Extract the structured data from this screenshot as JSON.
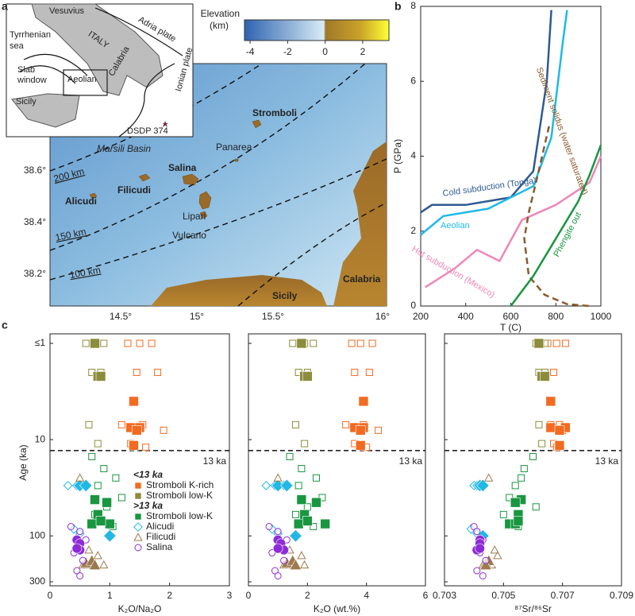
{
  "panels": [
    "a",
    "b",
    "c"
  ],
  "map": {
    "inset_labels": [
      "Vesuvius",
      "Adria plate",
      "Tyrrhenian",
      "sea",
      "ITALY",
      "Slab",
      "window",
      "Aeolian",
      "Calabria",
      "Sicily",
      "Ionian plate",
      "DSDP 374"
    ],
    "colorbar": {
      "title": [
        "Elevation",
        "(km)"
      ],
      "clim": [
        -4.3,
        3.4
      ],
      "ticks": [
        -4,
        -2,
        0,
        2
      ]
    },
    "place_labels": [
      "Stromboli",
      "Panarea",
      "Marsili Basin",
      "Salina",
      "Filicudi",
      "Alicudi",
      "Lipari",
      "Vulcano",
      "Sicily",
      "Calabria"
    ],
    "depth_labels": [
      "200 km",
      "150 km",
      "100 km"
    ],
    "lon_labels": [
      "14.5°",
      "15°",
      "15.5°",
      "16°"
    ],
    "lat_labels": [
      "38.6°",
      "38.4°",
      "38.2°"
    ]
  },
  "chart_data": [
    {
      "type": "line",
      "xlabel": "T (C)",
      "ylabel": "P (GPa)",
      "xlim": [
        200,
        1000
      ],
      "ylim": [
        0,
        8
      ],
      "xticks": [
        200,
        400,
        600,
        800,
        1000
      ],
      "yticks": [
        0,
        2,
        4,
        6,
        8
      ],
      "series": [
        {
          "name": "Cold subduction (Tonga)",
          "color": "#2e5a94",
          "x": [
            200,
            250,
            400,
            600,
            700,
            760,
            780
          ],
          "values": [
            2.5,
            2.7,
            2.7,
            2.9,
            3.6,
            6,
            7.9
          ]
        },
        {
          "name": "Aeolian",
          "color": "#1fb8e8",
          "x": [
            200,
            300,
            500,
            700,
            780,
            830,
            850
          ],
          "values": [
            1.9,
            2.4,
            2.6,
            3.2,
            4.5,
            7,
            7.9
          ]
        },
        {
          "name": "Hot subduction (Mexico)",
          "color": "#ef86b8",
          "x": [
            220,
            350,
            450,
            550,
            650,
            800,
            950,
            1000
          ],
          "values": [
            0.5,
            1,
            1.5,
            1.2,
            2.3,
            2.7,
            3.3,
            4
          ]
        },
        {
          "name": "Sediment solidus (water saturated)",
          "color": "#8a5a2b",
          "dash": true,
          "x": [
            770,
            720,
            680,
            660,
            680,
            750,
            850,
            950
          ],
          "values": [
            4.8,
            3.5,
            2.5,
            1.8,
            0.8,
            0.3,
            0.05,
            0
          ]
        },
        {
          "name": "Phengite out",
          "color": "#1a9641",
          "x": [
            600,
            700,
            800,
            900,
            950,
            1000
          ],
          "values": [
            0,
            0.8,
            1.8,
            2.8,
            3.5,
            4.3
          ]
        }
      ]
    },
    {
      "type": "scatter",
      "xlabel": "K₂O/Na₂O",
      "ylabel": "Age (ka)",
      "xlim": [
        0,
        3
      ],
      "xticks": [
        0,
        1,
        2,
        3
      ],
      "ylim": [
        1,
        300
      ],
      "y_scale": "log",
      "y_inverted": true,
      "yticks": [
        {
          "value": 1,
          "label": "≤1"
        },
        10,
        100,
        300
      ],
      "reference_line": {
        "value": 13,
        "label": "13 ka"
      },
      "legend_titles": [
        "<13 ka",
        ">13 ka"
      ],
      "series": [
        {
          "name": "Stromboli K-rich",
          "color": "#f26b21",
          "marker": "square",
          "x": [
            1.3,
            1.5,
            1.7,
            1.45,
            1.8,
            1.2,
            1.55,
            1.9,
            1.35,
            1.6
          ],
          "values": [
            1,
            1,
            1,
            2,
            2,
            7,
            7,
            8,
            11,
            12
          ],
          "mean_x": [
            1.4,
            1.35,
            1.5,
            1.45,
            1.4
          ],
          "mean_values": [
            4,
            7.5,
            7.5,
            8,
            11.5
          ]
        },
        {
          "name": "Stromboli low-K",
          "color": "#8c8c3c",
          "marker": "square",
          "x": [
            0.6,
            0.75,
            0.9,
            0.7,
            0.85,
            0.8,
            0.65
          ],
          "values": [
            1,
            1,
            1,
            2,
            2,
            11,
            7
          ],
          "mean_x": [
            0.75,
            0.8,
            0.85
          ],
          "mean_values": [
            1,
            2.2,
            2.2
          ]
        },
        {
          "name": "Stromboli low-K",
          "color": "#1a9641",
          "marker": "square",
          "x": [
            0.7,
            0.9,
            1.1,
            0.8,
            1.2,
            0.95,
            0.75,
            1.05
          ],
          "values": [
            15,
            20,
            25,
            30,
            40,
            50,
            60,
            80
          ],
          "mean_x": [
            0.75,
            0.95,
            0.8,
            0.7,
            1.0,
            0.85
          ],
          "mean_values": [
            42,
            45,
            60,
            75,
            75,
            70
          ]
        },
        {
          "name": "Alicudi",
          "color": "#22b8e6",
          "marker": "diamond",
          "x": [
            0.3,
            0.45,
            0.6,
            0.4,
            0.5
          ],
          "values": [
            30,
            30,
            30,
            85,
            95
          ],
          "mean_x": [
            0.5,
            0.6,
            1.0
          ],
          "mean_values": [
            30,
            30,
            100
          ]
        },
        {
          "name": "Filicudi",
          "color": "#9c7a4c",
          "marker": "triangle",
          "x": [
            0.5,
            0.65,
            0.8,
            0.55,
            0.7,
            0.9
          ],
          "values": [
            25,
            140,
            160,
            200,
            200,
            200
          ],
          "mean_x": [
            0.6,
            0.7,
            0.75
          ],
          "mean_values": [
            190,
            180,
            200
          ]
        },
        {
          "name": "Salina",
          "color": "#8e2bd6",
          "marker": "circle",
          "x": [
            0.35,
            0.5,
            0.6,
            0.4,
            0.55,
            0.45,
            0.5
          ],
          "values": [
            80,
            90,
            110,
            150,
            180,
            230,
            260
          ],
          "mean_x": [
            0.45,
            0.5,
            0.5,
            0.45
          ],
          "mean_values": [
            110,
            120,
            140,
            135
          ]
        }
      ]
    },
    {
      "type": "scatter",
      "xlabel": "K₂O (wt.%)",
      "xlim": [
        0,
        6
      ],
      "xticks": [
        0,
        2,
        4,
        6
      ],
      "ylim": [
        1,
        300
      ],
      "y_scale": "log",
      "y_inverted": true,
      "reference_line": {
        "value": 13,
        "label": "13 ka"
      },
      "series": [
        {
          "color": "#f26b21",
          "marker": "square",
          "x": [
            3.5,
            3.8,
            4.2,
            3.6,
            4.1,
            3.3,
            3.9,
            4.4,
            3.6,
            4.0
          ],
          "values": [
            1,
            1,
            1,
            2,
            2,
            7,
            7,
            8,
            11,
            12
          ],
          "mean_x": [
            3.9,
            3.6,
            3.9,
            3.8,
            3.8
          ],
          "mean_values": [
            4,
            7.5,
            7.5,
            8,
            11.5
          ]
        },
        {
          "color": "#8c8c3c",
          "marker": "square",
          "x": [
            1.5,
            1.9,
            2.2,
            1.7,
            2.0,
            1.9,
            1.6
          ],
          "values": [
            1,
            1,
            1,
            2,
            2,
            11,
            7
          ],
          "mean_x": [
            1.8,
            1.9,
            2.0
          ],
          "mean_values": [
            1,
            2.2,
            2.2
          ]
        },
        {
          "color": "#1a9641",
          "marker": "square",
          "x": [
            1.4,
            1.8,
            2.3,
            1.7,
            2.5,
            2.0,
            1.6,
            2.2
          ],
          "values": [
            15,
            20,
            25,
            30,
            40,
            50,
            60,
            80
          ],
          "mean_x": [
            1.8,
            2.3,
            1.9,
            1.7,
            2.6,
            2.0
          ],
          "mean_values": [
            42,
            45,
            60,
            75,
            75,
            70
          ]
        },
        {
          "color": "#22b8e6",
          "marker": "diamond",
          "x": [
            0.6,
            0.9,
            1.2,
            0.8,
            1.0
          ],
          "values": [
            30,
            30,
            30,
            85,
            95
          ],
          "mean_x": [
            1.0,
            1.3,
            1.6
          ],
          "mean_values": [
            30,
            30,
            100
          ]
        },
        {
          "color": "#9c7a4c",
          "marker": "triangle",
          "x": [
            1.0,
            1.4,
            1.8,
            1.2,
            1.5,
            1.9
          ],
          "values": [
            25,
            140,
            160,
            200,
            200,
            200
          ],
          "mean_x": [
            1.3,
            1.5,
            1.6
          ],
          "mean_values": [
            190,
            180,
            200
          ]
        },
        {
          "color": "#8e2bd6",
          "marker": "circle",
          "x": [
            0.7,
            1.0,
            1.3,
            0.8,
            1.2,
            0.9,
            1.0
          ],
          "values": [
            80,
            90,
            110,
            150,
            180,
            230,
            260
          ],
          "mean_x": [
            1.0,
            1.1,
            1.2,
            1.0
          ],
          "mean_values": [
            110,
            120,
            140,
            135
          ]
        }
      ]
    },
    {
      "type": "scatter",
      "xlabel": "⁸⁷Sr/⁸⁶Sr",
      "xlim": [
        0.703,
        0.709
      ],
      "xticks": [
        0.703,
        0.705,
        0.707,
        0.709
      ],
      "ylim": [
        1,
        300
      ],
      "y_scale": "log",
      "y_inverted": true,
      "reference_line": {
        "value": 13,
        "label": "13 ka"
      },
      "series": [
        {
          "color": "#f26b21",
          "marker": "square",
          "x": [
            0.7065,
            0.7068,
            0.7071,
            0.7064,
            0.7067,
            0.7066,
            0.7069,
            0.707,
            0.7067,
            0.7068
          ],
          "values": [
            1,
            1,
            1,
            2,
            2,
            7,
            7,
            8,
            11,
            12
          ],
          "mean_x": [
            0.7066,
            0.7066,
            0.7071,
            0.7069,
            0.7069
          ],
          "mean_values": [
            4,
            7.5,
            7.5,
            8,
            11.5
          ]
        },
        {
          "color": "#8c8c3c",
          "marker": "square",
          "x": [
            0.7061,
            0.7062,
            0.7064,
            0.7062,
            0.7064,
            0.7063,
            0.7062
          ],
          "values": [
            1,
            1,
            1,
            2,
            2,
            11,
            7
          ],
          "mean_x": [
            0.7062,
            0.7063,
            0.7064
          ],
          "mean_values": [
            1,
            2.2,
            2.2
          ]
        },
        {
          "color": "#1a9641",
          "marker": "square",
          "x": [
            0.706,
            0.7057,
            0.7056,
            0.7054,
            0.7052,
            0.7061,
            0.705,
            0.7055
          ],
          "values": [
            15,
            20,
            25,
            30,
            40,
            50,
            60,
            80
          ],
          "mean_x": [
            0.7056,
            0.7054,
            0.7055,
            0.7052,
            0.7054,
            0.7055
          ],
          "mean_values": [
            42,
            45,
            60,
            75,
            75,
            70
          ]
        },
        {
          "color": "#22b8e6",
          "marker": "diamond",
          "x": [
            0.704,
            0.7041,
            0.7042,
            0.7039,
            0.7041
          ],
          "values": [
            30,
            30,
            30,
            85,
            95
          ],
          "mean_x": [
            0.7042,
            0.7043,
            0.7043
          ],
          "mean_values": [
            30,
            30,
            100
          ]
        },
        {
          "color": "#9c7a4c",
          "marker": "triangle",
          "x": [
            0.7045,
            0.7047,
            0.7048,
            0.7043,
            0.7044,
            0.7046
          ],
          "values": [
            25,
            140,
            160,
            200,
            200,
            200
          ],
          "mean_x": [
            0.7044,
            0.7045,
            0.7044
          ],
          "mean_values": [
            190,
            180,
            200
          ]
        },
        {
          "color": "#8e2bd6",
          "marker": "circle",
          "x": [
            0.704,
            0.7041,
            0.7043,
            0.7042,
            0.7044,
            0.7041,
            0.7043
          ],
          "values": [
            80,
            90,
            110,
            150,
            180,
            230,
            260
          ],
          "mean_x": [
            0.7042,
            0.7042,
            0.7041,
            0.7042
          ],
          "mean_values": [
            110,
            120,
            140,
            135
          ]
        }
      ]
    }
  ]
}
